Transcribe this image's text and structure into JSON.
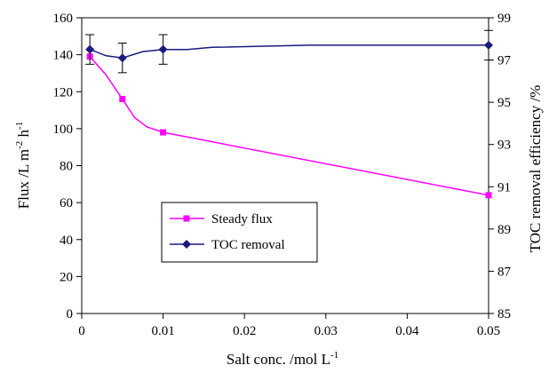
{
  "chart_data": {
    "type": "line",
    "x": [
      0.001,
      0.005,
      0.01,
      0.05
    ],
    "xlabel": "Salt conc. /mol L",
    "xlabel_sup": "-1",
    "ylabel_left": "Flux /L m",
    "ylabel_left_sup1": "-2",
    "ylabel_left_mid": " h",
    "ylabel_left_sup2": "-1",
    "ylabel_right": "TOC removal efficiency /%",
    "xlim": [
      0,
      0.05
    ],
    "ylim_left": [
      0,
      160
    ],
    "ylim_right": [
      85,
      99
    ],
    "x_ticks": [
      0,
      0.01,
      0.02,
      0.03,
      0.04,
      0.05
    ],
    "x_tick_labels": [
      "0",
      "0.01",
      "0.02",
      "0.03",
      "0.04",
      "0.05"
    ],
    "y_left_ticks": [
      0,
      20,
      40,
      60,
      80,
      100,
      120,
      140,
      160
    ],
    "y_left_tick_labels": [
      "0",
      "20",
      "40",
      "60",
      "80",
      "100",
      "120",
      "140",
      "160"
    ],
    "y_right_ticks": [
      85,
      87,
      89,
      91,
      93,
      95,
      97,
      99
    ],
    "y_right_tick_labels": [
      "85",
      "87",
      "89",
      "91",
      "93",
      "95",
      "97",
      "99"
    ],
    "legend_position": "lower-left",
    "grid": false,
    "series": [
      {
        "name": "Steady flux",
        "axis": "left",
        "color": "#ff00ff",
        "marker": "square",
        "values": [
          139,
          116,
          98,
          64
        ],
        "curve": [
          [
            0.001,
            139
          ],
          [
            0.003,
            129
          ],
          [
            0.005,
            116
          ],
          [
            0.0065,
            106
          ],
          [
            0.008,
            101
          ],
          [
            0.01,
            98
          ],
          [
            0.05,
            64
          ]
        ]
      },
      {
        "name": "TOC removal",
        "axis": "right",
        "color": "#1a1a80",
        "marker": "diamond",
        "values": [
          97.5,
          97.1,
          97.5,
          97.7
        ],
        "error": [
          0.7,
          0.7,
          0.7,
          0.7
        ],
        "curve": [
          [
            0.001,
            97.5
          ],
          [
            0.003,
            97.2
          ],
          [
            0.005,
            97.1
          ],
          [
            0.0075,
            97.4
          ],
          [
            0.01,
            97.5
          ],
          [
            0.013,
            97.5
          ],
          [
            0.016,
            97.6
          ],
          [
            0.028,
            97.7
          ],
          [
            0.05,
            97.7
          ]
        ]
      }
    ]
  }
}
